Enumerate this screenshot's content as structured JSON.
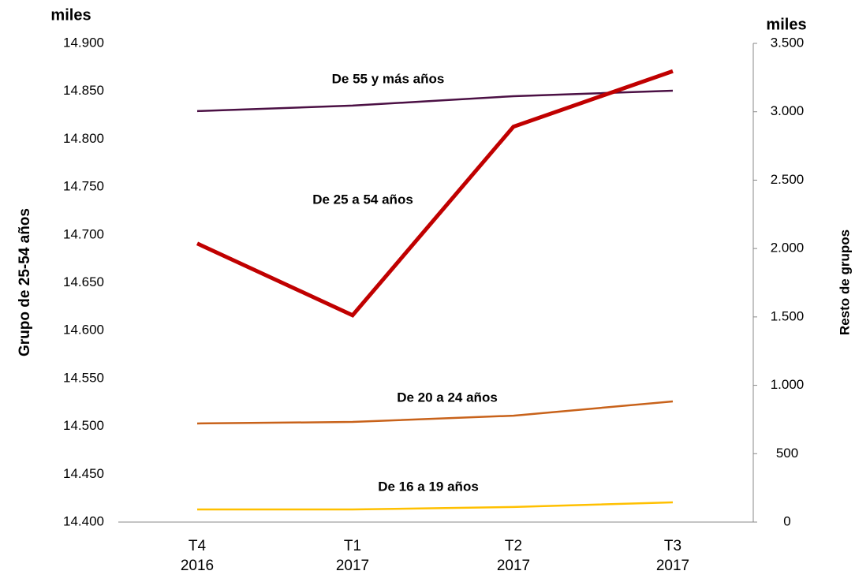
{
  "chart_data": {
    "type": "line",
    "categories": [
      "T4\n2016",
      "T1\n2017",
      "T2\n2017",
      "T3\n2017"
    ],
    "y_unit": "miles",
    "y2_unit": "miles",
    "ylabel": "Grupo de 25-54 años",
    "y2label": "Resto de grupos",
    "ylim": [
      14400,
      14900
    ],
    "yticks": [
      {
        "value": 14400,
        "label": "14.400"
      },
      {
        "value": 14450,
        "label": "14.450"
      },
      {
        "value": 14500,
        "label": "14.500"
      },
      {
        "value": 14550,
        "label": "14.550"
      },
      {
        "value": 14600,
        "label": "14.600"
      },
      {
        "value": 14650,
        "label": "14.650"
      },
      {
        "value": 14700,
        "label": "14.700"
      },
      {
        "value": 14750,
        "label": "14.750"
      },
      {
        "value": 14800,
        "label": "14.800"
      },
      {
        "value": 14850,
        "label": "14.850"
      },
      {
        "value": 14900,
        "label": "14.900"
      }
    ],
    "y2lim": [
      0,
      3500
    ],
    "y2ticks": [
      0,
      500,
      {
        "value": 1000,
        "label": "1.000"
      },
      {
        "value": 1500,
        "label": "1.500"
      },
      {
        "value": 2000,
        "label": "2.000"
      },
      {
        "value": 2500,
        "label": "2.500"
      },
      {
        "value": 3000,
        "label": "3.000"
      },
      {
        "value": 3500,
        "label": "3.500"
      }
    ],
    "series": [
      {
        "name": "De 55 y más años",
        "color": "#4b1044",
        "axis": "y2",
        "values": [
          3005,
          3045,
          3114,
          3154
        ]
      },
      {
        "name": "De 25 a 54 años",
        "color": "#c00000",
        "values": [
          14691,
          14616,
          14813,
          14871
        ]
      },
      {
        "name": "De 20 a 24 años",
        "color": "#c8621a",
        "axis": "y2",
        "values": [
          721,
          732,
          778,
          882
        ]
      },
      {
        "name": "De 16 a 19 años",
        "color": "#ffc000",
        "axis": "y2",
        "values": [
          92,
          92,
          110,
          144
        ]
      }
    ]
  }
}
